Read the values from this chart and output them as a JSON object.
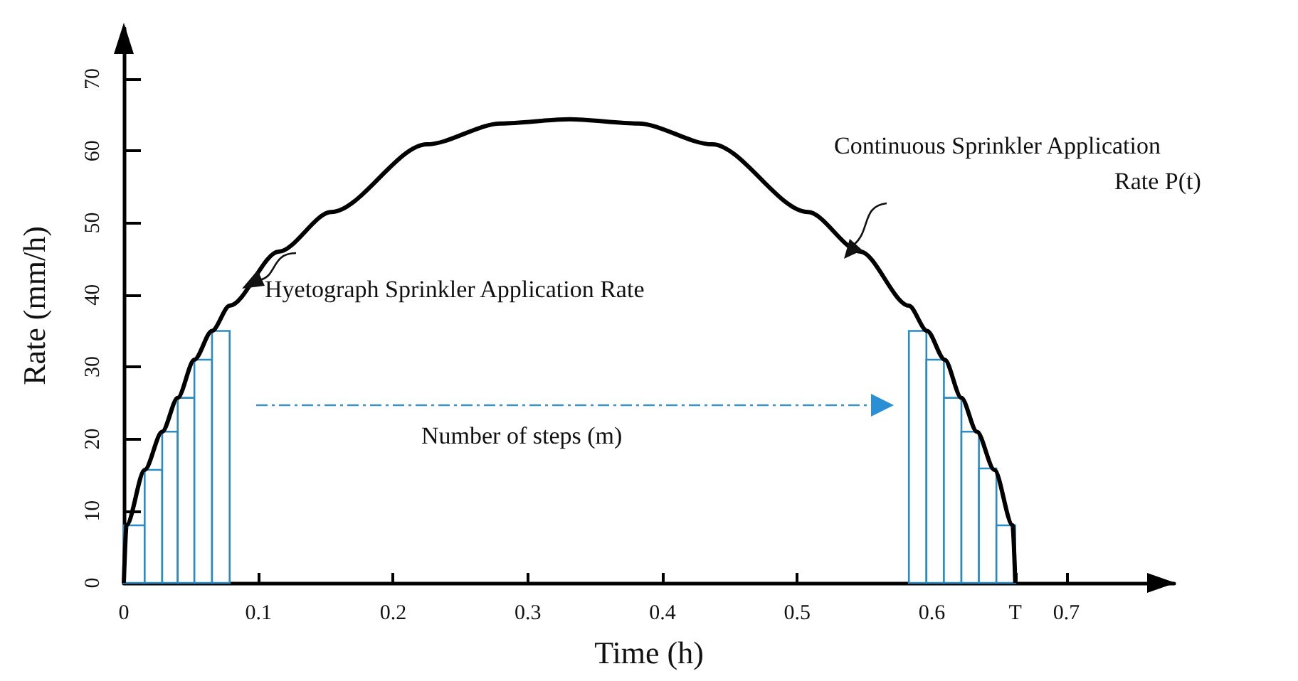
{
  "chart_data": {
    "type": "line",
    "xlabel": "Time (h)",
    "ylabel": "Rate (mm/h)",
    "xlim": [
      0,
      0.78
    ],
    "ylim": [
      0,
      77
    ],
    "xticks": [
      0,
      0.1,
      0.2,
      0.3,
      0.4,
      0.5,
      0.6,
      {
        "value": 0.662,
        "label": "T"
      },
      0.7
    ],
    "yticks": [
      0,
      10,
      20,
      30,
      40,
      50,
      60,
      70
    ],
    "marker": "none",
    "grid": false,
    "series": [
      {
        "color": "#000000",
        "x": [
          0,
          0.002,
          0.0155,
          0.0285,
          0.04,
          0.0524,
          0.0655,
          0.0786,
          0.115,
          0.154,
          0.225,
          0.28,
          0.331,
          0.382,
          0.437,
          0.508,
          0.547,
          0.583,
          0.5965,
          0.6096,
          0.622,
          0.6335,
          0.6465,
          0.66,
          0.662
        ],
        "values": [
          0,
          8,
          15.7,
          21,
          25.7,
          31,
          35,
          38.5,
          46,
          51.5,
          60.9,
          63.8,
          64.4,
          63.8,
          60.9,
          51.5,
          46,
          38.5,
          35,
          31,
          25.7,
          21,
          15.7,
          8,
          0
        ]
      },
      {
        "type": "histogram",
        "color": "#2b8cc4",
        "bins": [
          0,
          0.0155,
          0.0285,
          0.04,
          0.0524,
          0.0655,
          0.0786
        ],
        "values": [
          8,
          15.7,
          21,
          25.7,
          31,
          35
        ]
      },
      {
        "type": "histogram",
        "color": "#2b8cc4",
        "bins": [
          0.583,
          0.596,
          0.609,
          0.622,
          0.635,
          0.648,
          0.662
        ],
        "values": [
          35,
          31,
          25.7,
          21,
          15.9,
          8
        ]
      }
    ],
    "annotations": [
      "Hyetograph Sprinkler Application Rate",
      "Continuous Sprinkler Application\nRate P(t)",
      "Number of steps (m)"
    ]
  }
}
